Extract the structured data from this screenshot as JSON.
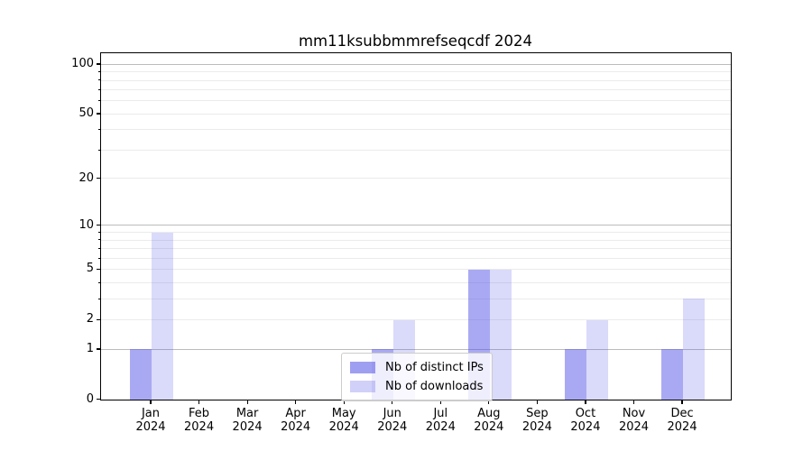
{
  "chart_data": {
    "type": "bar",
    "title": "mm11ksubbmmrefseqcdf 2024",
    "categories": [
      "Jan 2024",
      "Feb 2024",
      "Mar 2024",
      "Apr 2024",
      "May 2024",
      "Jun 2024",
      "Jul 2024",
      "Aug 2024",
      "Sep 2024",
      "Oct 2024",
      "Nov 2024",
      "Dec 2024"
    ],
    "series": [
      {
        "name": "Nb of distinct IPs",
        "values": [
          1,
          0,
          0,
          0,
          0,
          1,
          0,
          5,
          0,
          1,
          0,
          1
        ],
        "color": "#5050e6",
        "alpha": 0.49
      },
      {
        "name": "Nb of downloads",
        "values": [
          9,
          0,
          0,
          0,
          0,
          2,
          0,
          5,
          0,
          2,
          0,
          3
        ],
        "color": "#5050e6",
        "alpha": 0.21
      }
    ],
    "y_axis": {
      "scale": "log1p",
      "ticks": [
        0,
        1,
        2,
        5,
        10,
        20,
        50,
        100
      ],
      "major_gridlines": [
        1,
        10,
        100
      ],
      "minor_gridlines": [
        2,
        3,
        4,
        5,
        6,
        7,
        8,
        9,
        20,
        30,
        40,
        50,
        60,
        70,
        80,
        90
      ],
      "top_value": 118
    },
    "legend": {
      "position": "lower center",
      "entries": [
        "Nb of distinct IPs",
        "Nb of downloads"
      ]
    },
    "grid": true,
    "colors": {
      "major_grid": "#bcbcbc",
      "minor_grid": "#ebebeb",
      "spine": "#000000",
      "text": "#000000",
      "background": "#ffffff"
    }
  }
}
